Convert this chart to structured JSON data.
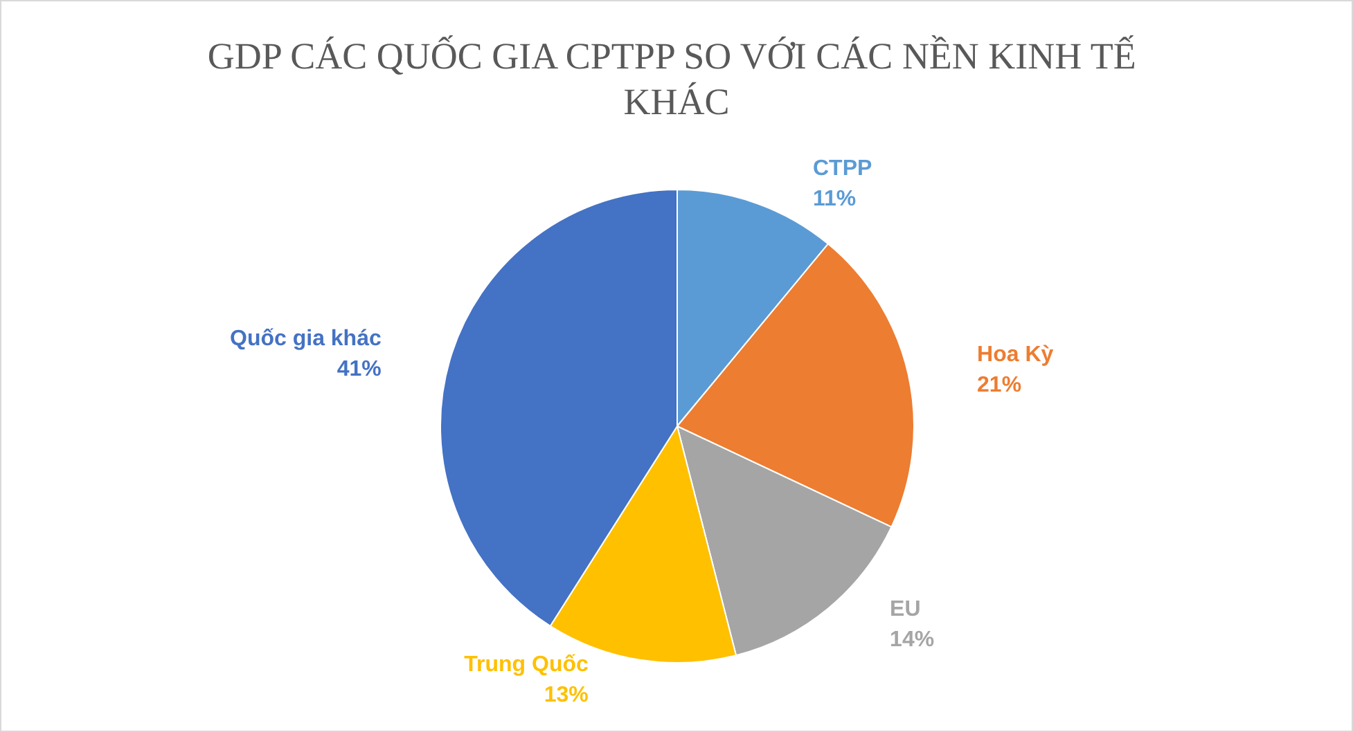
{
  "chart_data": {
    "type": "pie",
    "title": "GDP CÁC QUỐC GIA CPTPP SO VỚI CÁC NỀN KINH TẾ KHÁC",
    "categories": [
      "CTPP",
      "Hoa Kỳ",
      "EU",
      "Trung Quốc",
      "Quốc gia khác"
    ],
    "values": [
      11,
      21,
      14,
      13,
      41
    ],
    "colors": [
      "#5b9bd5",
      "#ed7d31",
      "#a5a5a5",
      "#ffc000",
      "#4472c4"
    ],
    "value_labels": [
      "11%",
      "21%",
      "14%",
      "13%",
      "41%"
    ],
    "legend": false
  }
}
